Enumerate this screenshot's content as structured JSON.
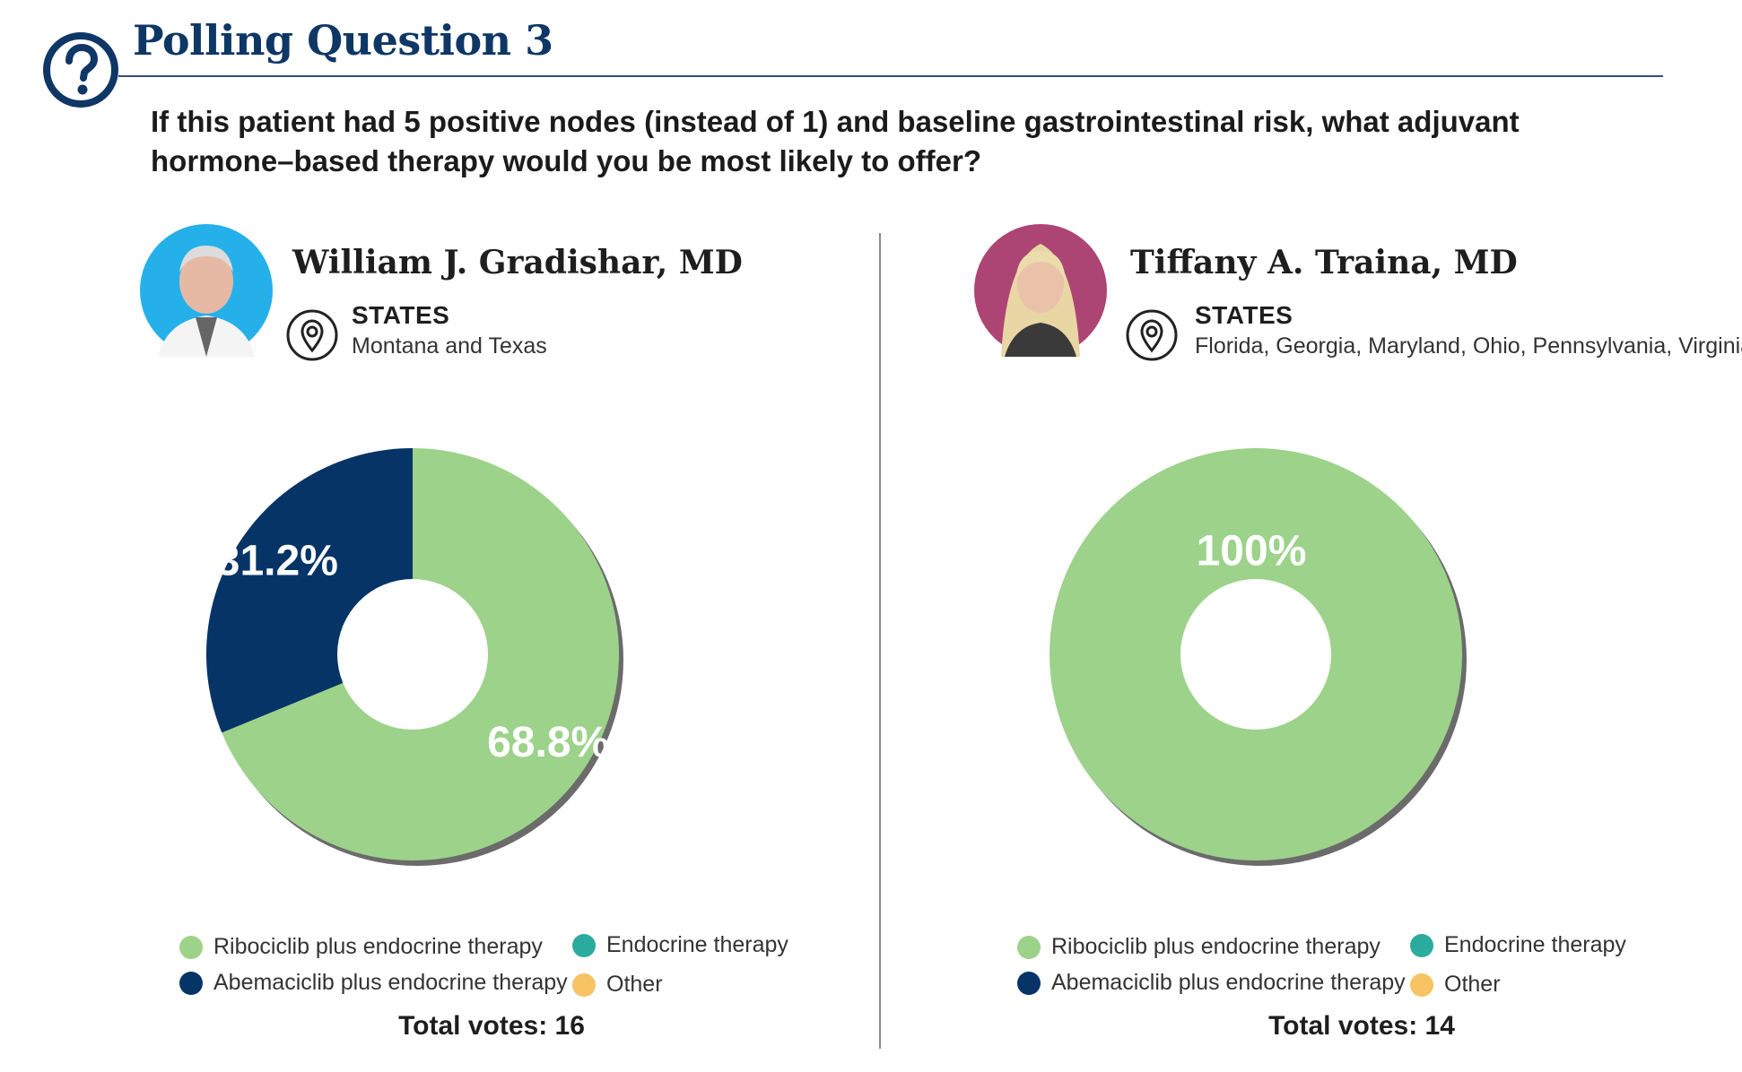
{
  "header": {
    "icon": "question-circle-icon",
    "title": "Polling Question 3",
    "question": "If this patient had 5 positive nodes (instead of 1) and baseline gastrointestinal risk, what adjuvant hormone–based therapy would you be most likely to offer?"
  },
  "colors": {
    "ribociclib": "#9dd28a",
    "abemaciclib": "#063466",
    "endocrine": "#2bab9e",
    "other": "#f7c363",
    "navy": "#0e3766"
  },
  "panels": [
    {
      "doctor": "William J. Gradishar, MD",
      "avatar_bg": "#25b0ea",
      "states_label": "STATES",
      "states": "Montana and Texas",
      "total_votes": "Total votes: 16"
    },
    {
      "doctor": "Tiffany A. Traina, MD",
      "avatar_bg": "#ac4574",
      "states_label": "STATES",
      "states": "Florida, Georgia, Maryland, Ohio, Pennsylvania, Virginia",
      "total_votes": "Total votes: 14"
    }
  ],
  "legend": [
    {
      "label": "Ribociclib plus endocrine therapy",
      "color": "#9dd28a"
    },
    {
      "label": "Abemaciclib plus endocrine therapy",
      "color": "#063466"
    },
    {
      "label": "Endocrine therapy",
      "color": "#2bab9e"
    },
    {
      "label": "Other",
      "color": "#f7c363"
    }
  ],
  "chart_data": [
    {
      "type": "pie",
      "title": "",
      "categories": [
        "Ribociclib plus endocrine therapy",
        "Abemaciclib plus endocrine therapy",
        "Endocrine therapy",
        "Other"
      ],
      "values": [
        68.8,
        31.2,
        0,
        0
      ],
      "labels": [
        "68.8%",
        "31.2%",
        "",
        ""
      ],
      "total_votes": 16
    },
    {
      "type": "pie",
      "title": "",
      "categories": [
        "Ribociclib plus endocrine therapy",
        "Abemaciclib plus endocrine therapy",
        "Endocrine therapy",
        "Other"
      ],
      "values": [
        100,
        0,
        0,
        0
      ],
      "labels": [
        "100%",
        "",
        "",
        ""
      ],
      "total_votes": 14
    }
  ]
}
